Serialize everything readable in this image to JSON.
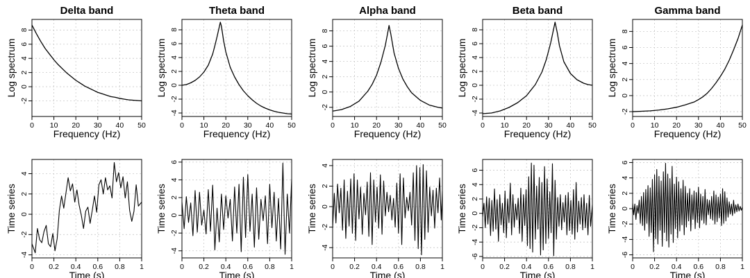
{
  "chart_data": [
    {
      "type": "line",
      "name": "spec-delta",
      "title": "Delta band",
      "xlabel": "Frequency (Hz)",
      "ylabel": "Log spectrum",
      "xlim": [
        0,
        50
      ],
      "ylim": [
        -4.2,
        9.5
      ],
      "xticks": [
        0,
        10,
        20,
        30,
        40,
        50
      ],
      "yticks": [
        -2,
        0,
        2,
        4,
        6,
        8
      ],
      "x": [
        0,
        2,
        4,
        6,
        8,
        10,
        12,
        14,
        16,
        18,
        20,
        22,
        24,
        26,
        28,
        30,
        32,
        34,
        36,
        38,
        40,
        42,
        44,
        46,
        48,
        50
      ],
      "y": [
        8.7,
        7.5,
        6.4,
        5.4,
        4.6,
        3.8,
        3.1,
        2.5,
        1.9,
        1.4,
        0.9,
        0.5,
        0.1,
        -0.2,
        -0.5,
        -0.8,
        -1.0,
        -1.2,
        -1.4,
        -1.5,
        -1.65,
        -1.75,
        -1.85,
        -1.9,
        -1.95,
        -2.0
      ]
    },
    {
      "type": "line",
      "name": "spec-theta",
      "title": "Theta band",
      "xlabel": "Frequency (Hz)",
      "ylabel": "Log spectrum",
      "xlim": [
        0,
        50
      ],
      "ylim": [
        -4.5,
        9.5
      ],
      "xticks": [
        0,
        10,
        20,
        30,
        40,
        50
      ],
      "yticks": [
        -4,
        -2,
        0,
        2,
        4,
        6,
        8
      ],
      "x": [
        0,
        2,
        4,
        6,
        8,
        10,
        12,
        14,
        15,
        16,
        17,
        17.5,
        18,
        19,
        20,
        22,
        24,
        26,
        28,
        30,
        32,
        34,
        36,
        38,
        40,
        42,
        44,
        46,
        48,
        50
      ],
      "y": [
        0,
        0.1,
        0.35,
        0.7,
        1.2,
        1.9,
        2.9,
        4.5,
        5.7,
        7.0,
        8.4,
        9.1,
        8.5,
        6.4,
        4.8,
        2.6,
        1.2,
        0.1,
        -0.8,
        -1.5,
        -2.1,
        -2.6,
        -3.0,
        -3.3,
        -3.55,
        -3.75,
        -3.9,
        -4.0,
        -4.1,
        -4.15
      ]
    },
    {
      "type": "line",
      "name": "spec-alpha",
      "title": "Alpha band",
      "xlabel": "Frequency (Hz)",
      "ylabel": "Log spectrum",
      "xlim": [
        0,
        50
      ],
      "ylim": [
        -3.2,
        9.5
      ],
      "xticks": [
        0,
        10,
        20,
        30,
        40,
        50
      ],
      "yticks": [
        -2,
        0,
        2,
        4,
        6,
        8
      ],
      "x": [
        0,
        4,
        8,
        12,
        16,
        18,
        20,
        22,
        24,
        25,
        25.7,
        26.5,
        28,
        30,
        32,
        34,
        36,
        40,
        44,
        48,
        50
      ],
      "y": [
        -2.5,
        -2.3,
        -1.9,
        -1.2,
        0.1,
        1.0,
        2.2,
        3.9,
        6.1,
        7.6,
        8.7,
        7.6,
        5.1,
        3.1,
        1.7,
        0.7,
        -0.1,
        -1.1,
        -1.7,
        -2.0,
        -2.1
      ]
    },
    {
      "type": "line",
      "name": "spec-beta",
      "title": "Beta band",
      "xlabel": "Frequency (Hz)",
      "ylabel": "Log spectrum",
      "xlim": [
        0,
        50
      ],
      "ylim": [
        -4.5,
        9.5
      ],
      "xticks": [
        0,
        10,
        20,
        30,
        40,
        50
      ],
      "yticks": [
        -4,
        -2,
        0,
        2,
        4,
        6,
        8
      ],
      "x": [
        0,
        4,
        8,
        12,
        16,
        20,
        24,
        27,
        29,
        31,
        32,
        33,
        34,
        35,
        37,
        40,
        43,
        46,
        48,
        50
      ],
      "y": [
        -4.1,
        -4.0,
        -3.7,
        -3.2,
        -2.5,
        -1.5,
        0.1,
        1.9,
        3.7,
        6.1,
        7.6,
        9.1,
        7.6,
        5.7,
        3.4,
        1.7,
        0.8,
        0.3,
        0.1,
        0.0
      ]
    },
    {
      "type": "line",
      "name": "spec-gamma",
      "title": "Gamma band",
      "xlabel": "Frequency (Hz)",
      "ylabel": "Log spectrum",
      "xlim": [
        0,
        50
      ],
      "ylim": [
        -2.6,
        9.5
      ],
      "xticks": [
        0,
        10,
        20,
        30,
        40,
        50
      ],
      "yticks": [
        -2,
        0,
        2,
        4,
        6,
        8
      ],
      "x": [
        0,
        4,
        8,
        12,
        16,
        20,
        24,
        28,
        30,
        32,
        34,
        36,
        38,
        40,
        42,
        44,
        46,
        48,
        50
      ],
      "y": [
        -2.0,
        -1.95,
        -1.9,
        -1.8,
        -1.65,
        -1.45,
        -1.15,
        -0.8,
        -0.5,
        -0.15,
        0.3,
        0.9,
        1.6,
        2.4,
        3.3,
        4.4,
        5.7,
        7.1,
        8.8
      ]
    },
    {
      "type": "line",
      "name": "ts-delta",
      "title": "",
      "xlabel": "Time (s)",
      "ylabel": "Time series",
      "xlim": [
        0,
        1
      ],
      "ylim": [
        -4.3,
        5.4
      ],
      "xticks": [
        0,
        0.2,
        0.4,
        0.6,
        0.8,
        1.0
      ],
      "yticks": [
        -4,
        -2,
        0,
        2,
        4
      ],
      "x": [
        0.0,
        0.03,
        0.05,
        0.07,
        0.09,
        0.11,
        0.13,
        0.15,
        0.17,
        0.19,
        0.21,
        0.23,
        0.25,
        0.27,
        0.29,
        0.31,
        0.33,
        0.35,
        0.37,
        0.39,
        0.41,
        0.43,
        0.45,
        0.47,
        0.49,
        0.51,
        0.53,
        0.55,
        0.57,
        0.59,
        0.61,
        0.63,
        0.65,
        0.67,
        0.69,
        0.71,
        0.73,
        0.75,
        0.77,
        0.79,
        0.81,
        0.83,
        0.85,
        0.87,
        0.89,
        0.91,
        0.93,
        0.95,
        0.97,
        1.0
      ],
      "y": [
        -2.9,
        -3.8,
        -1.4,
        -2.5,
        -2.8,
        -1.7,
        -1.1,
        -2.9,
        -3.2,
        -1.9,
        -3.6,
        -2.4,
        0.4,
        1.8,
        0.6,
        2.1,
        3.6,
        2.3,
        3.0,
        1.2,
        2.4,
        0.9,
        -0.1,
        -1.4,
        0.3,
        0.7,
        -0.9,
        0.4,
        1.8,
        0.2,
        2.9,
        3.4,
        2.0,
        3.6,
        2.4,
        2.8,
        1.6,
        5.1,
        3.2,
        4.1,
        2.6,
        3.7,
        1.6,
        3.2,
        0.4,
        -0.7,
        0.3,
        2.9,
        0.8,
        1.2
      ]
    },
    {
      "type": "line",
      "name": "ts-theta",
      "title": "",
      "xlabel": "Time (s)",
      "ylabel": "Time series",
      "xlim": [
        0,
        1
      ],
      "ylim": [
        -4.8,
        6.3
      ],
      "xticks": [
        0,
        0.2,
        0.4,
        0.6,
        0.8,
        1.0
      ],
      "yticks": [
        -4,
        -2,
        0,
        2,
        4,
        6
      ],
      "x": [
        0.0,
        0.02,
        0.04,
        0.06,
        0.08,
        0.1,
        0.12,
        0.14,
        0.16,
        0.18,
        0.2,
        0.22,
        0.24,
        0.26,
        0.28,
        0.3,
        0.32,
        0.34,
        0.36,
        0.38,
        0.4,
        0.42,
        0.44,
        0.46,
        0.48,
        0.5,
        0.52,
        0.54,
        0.56,
        0.58,
        0.6,
        0.62,
        0.64,
        0.66,
        0.68,
        0.7,
        0.72,
        0.74,
        0.76,
        0.78,
        0.8,
        0.82,
        0.84,
        0.86,
        0.88,
        0.9,
        0.92,
        0.94,
        0.96,
        0.98,
        1.0
      ],
      "y": [
        1.5,
        -1.5,
        2.1,
        -0.8,
        1.4,
        -2.3,
        2.8,
        -1.9,
        2.6,
        -1.1,
        0.6,
        -2.1,
        2.9,
        -1.8,
        3.4,
        -3.9,
        0.8,
        -3.0,
        2.4,
        -1.6,
        2.2,
        -0.3,
        1.8,
        -2.9,
        3.2,
        -2.0,
        3.5,
        -4.1,
        4.3,
        -2.5,
        4.6,
        -1.8,
        2.4,
        -3.6,
        3.1,
        -2.7,
        1.8,
        -0.6,
        2.2,
        -3.2,
        3.5,
        -1.4,
        2.6,
        -2.9,
        1.9,
        -3.8,
        5.9,
        -4.4,
        2.4,
        -2.0,
        4.1
      ]
    },
    {
      "type": "line",
      "name": "ts-alpha",
      "title": "",
      "xlabel": "Time (s)",
      "ylabel": "Time series",
      "xlim": [
        0,
        1
      ],
      "ylim": [
        -5.0,
        4.6
      ],
      "xticks": [
        0,
        0.2,
        0.4,
        0.6,
        0.8,
        1.0
      ],
      "yticks": [
        -4,
        -2,
        0,
        2,
        4
      ],
      "x": [
        0.0,
        0.015,
        0.03,
        0.045,
        0.06,
        0.075,
        0.09,
        0.105,
        0.12,
        0.135,
        0.15,
        0.165,
        0.18,
        0.195,
        0.21,
        0.225,
        0.24,
        0.255,
        0.27,
        0.285,
        0.3,
        0.315,
        0.33,
        0.345,
        0.36,
        0.375,
        0.39,
        0.405,
        0.42,
        0.435,
        0.45,
        0.465,
        0.48,
        0.495,
        0.51,
        0.525,
        0.54,
        0.555,
        0.57,
        0.585,
        0.6,
        0.615,
        0.63,
        0.645,
        0.66,
        0.675,
        0.69,
        0.705,
        0.72,
        0.735,
        0.75,
        0.765,
        0.78,
        0.795,
        0.81,
        0.825,
        0.84,
        0.855,
        0.87,
        0.885,
        0.9,
        0.915,
        0.93,
        0.945,
        0.96,
        0.975,
        0.99,
        1.0
      ],
      "y": [
        -2.1,
        1.3,
        -1.6,
        2.2,
        -0.6,
        1.8,
        -2.3,
        2.6,
        -3.1,
        1.5,
        -1.9,
        2.7,
        -2.6,
        3.2,
        -3.3,
        2.6,
        -1.2,
        1.9,
        -2.7,
        1.3,
        -0.8,
        2.4,
        -2.9,
        3.3,
        -3.7,
        2.6,
        -1.5,
        1.9,
        -2.1,
        3.1,
        -2.7,
        2.5,
        -0.9,
        1.4,
        -0.5,
        1.1,
        -1.3,
        0.8,
        -2.0,
        2.3,
        -2.6,
        3.2,
        -3.7,
        2.8,
        -1.1,
        0.9,
        -0.4,
        1.4,
        -1.8,
        3.3,
        -3.3,
        4.0,
        -4.1,
        3.8,
        -4.7,
        4.1,
        -3.2,
        3.5,
        -2.5,
        1.9,
        -0.9,
        1.6,
        -2.1,
        1.8,
        -0.6,
        2.8,
        -1.3,
        1.5
      ]
    },
    {
      "type": "line",
      "name": "ts-beta",
      "title": "",
      "xlabel": "Time (s)",
      "ylabel": "Time series",
      "xlim": [
        0,
        1
      ],
      "ylim": [
        -6.2,
        7.5
      ],
      "xticks": [
        0,
        0.2,
        0.4,
        0.6,
        0.8,
        1.0
      ],
      "yticks": [
        -6,
        -4,
        -2,
        0,
        2,
        4,
        6
      ],
      "x": [
        0.0,
        0.012,
        0.024,
        0.036,
        0.048,
        0.06,
        0.072,
        0.084,
        0.096,
        0.108,
        0.12,
        0.132,
        0.144,
        0.156,
        0.168,
        0.18,
        0.192,
        0.204,
        0.216,
        0.228,
        0.24,
        0.252,
        0.264,
        0.276,
        0.288,
        0.3,
        0.312,
        0.324,
        0.336,
        0.348,
        0.36,
        0.372,
        0.384,
        0.396,
        0.408,
        0.42,
        0.432,
        0.444,
        0.456,
        0.468,
        0.48,
        0.492,
        0.504,
        0.516,
        0.528,
        0.54,
        0.552,
        0.564,
        0.576,
        0.588,
        0.6,
        0.612,
        0.624,
        0.636,
        0.648,
        0.66,
        0.672,
        0.684,
        0.696,
        0.708,
        0.72,
        0.732,
        0.744,
        0.756,
        0.768,
        0.78,
        0.792,
        0.804,
        0.816,
        0.828,
        0.84,
        0.852,
        0.864,
        0.876,
        0.888,
        0.9,
        0.912,
        0.924,
        0.936,
        0.948,
        0.96,
        0.972,
        0.984,
        1.0
      ],
      "y": [
        -0.5,
        1.4,
        -2.0,
        2.3,
        -1.5,
        2.1,
        -3.1,
        1.8,
        -2.5,
        3.4,
        -2.2,
        1.9,
        -3.9,
        2.6,
        -1.6,
        1.4,
        -2.7,
        3.1,
        -3.4,
        2.0,
        -1.3,
        4.2,
        -3.0,
        2.6,
        -1.9,
        1.3,
        -0.9,
        2.1,
        -2.8,
        3.5,
        -3.9,
        2.6,
        -1.7,
        3.3,
        -4.5,
        5.1,
        -4.9,
        7.0,
        -5.4,
        6.7,
        -3.6,
        3.8,
        -2.2,
        5.0,
        -5.8,
        4.3,
        -5.1,
        6.5,
        -4.2,
        4.8,
        -3.5,
        3.0,
        -2.7,
        6.9,
        -5.9,
        4.6,
        -3.6,
        2.2,
        -1.8,
        2.6,
        -2.3,
        1.5,
        -1.2,
        2.5,
        -3.0,
        2.9,
        -2.4,
        1.8,
        -2.9,
        3.3,
        -3.6,
        4.3,
        -2.6,
        1.7,
        -1.5,
        2.2,
        -2.3,
        2.6,
        -2.0,
        1.4,
        -3.0,
        2.5,
        -1.8,
        1.2
      ]
    },
    {
      "type": "line",
      "name": "ts-gamma",
      "title": "",
      "xlabel": "Time (s)",
      "ylabel": "Time series",
      "xlim": [
        0,
        1
      ],
      "ylim": [
        -6.4,
        6.4
      ],
      "xticks": [
        0,
        0.2,
        0.4,
        0.6,
        0.8,
        1.0
      ],
      "yticks": [
        -6,
        -4,
        -2,
        0,
        2,
        4,
        6
      ],
      "x": [
        0.0,
        0.01,
        0.02,
        0.03,
        0.04,
        0.05,
        0.06,
        0.07,
        0.08,
        0.09,
        0.1,
        0.11,
        0.12,
        0.13,
        0.14,
        0.15,
        0.16,
        0.17,
        0.18,
        0.19,
        0.2,
        0.21,
        0.22,
        0.23,
        0.24,
        0.25,
        0.26,
        0.27,
        0.28,
        0.29,
        0.3,
        0.31,
        0.32,
        0.33,
        0.34,
        0.35,
        0.36,
        0.37,
        0.38,
        0.39,
        0.4,
        0.41,
        0.42,
        0.43,
        0.44,
        0.45,
        0.46,
        0.47,
        0.48,
        0.49,
        0.5,
        0.51,
        0.52,
        0.53,
        0.54,
        0.55,
        0.56,
        0.57,
        0.58,
        0.59,
        0.6,
        0.61,
        0.62,
        0.63,
        0.64,
        0.65,
        0.66,
        0.67,
        0.68,
        0.69,
        0.7,
        0.71,
        0.72,
        0.73,
        0.74,
        0.75,
        0.76,
        0.77,
        0.78,
        0.79,
        0.8,
        0.81,
        0.82,
        0.83,
        0.84,
        0.85,
        0.86,
        0.87,
        0.88,
        0.89,
        0.9,
        0.91,
        0.92,
        0.93,
        0.94,
        0.95,
        0.96,
        0.97,
        0.98,
        0.99,
        1.0
      ],
      "y": [
        0.7,
        -0.8,
        0.6,
        -1.4,
        0.4,
        -0.6,
        1.1,
        -1.9,
        1.6,
        -2.2,
        2.1,
        -2.8,
        2.5,
        -1.9,
        3.0,
        -3.6,
        2.7,
        -3.1,
        3.8,
        -5.6,
        4.4,
        -3.9,
        5.1,
        -4.6,
        4.2,
        -2.8,
        3.6,
        -4.9,
        4.8,
        -3.1,
        5.9,
        -4.2,
        4.5,
        -5.0,
        3.9,
        -3.3,
        5.5,
        -4.4,
        3.2,
        -2.6,
        4.1,
        -3.8,
        3.5,
        -2.9,
        2.6,
        -2.1,
        3.7,
        -3.4,
        2.9,
        -2.4,
        2.0,
        -1.6,
        2.6,
        -2.9,
        1.8,
        -1.4,
        2.3,
        -2.6,
        2.1,
        -1.8,
        2.8,
        -2.5,
        1.9,
        -1.5,
        1.6,
        -1.9,
        2.5,
        -2.1,
        1.2,
        -0.8,
        1.1,
        -1.3,
        1.6,
        -1.5,
        2.3,
        -2.0,
        1.8,
        -1.7,
        1.5,
        -1.2,
        1.9,
        -2.2,
        2.6,
        -1.9,
        2.2,
        -1.6,
        1.4,
        -1.1,
        0.9,
        -0.7,
        0.6,
        -0.9,
        1.1,
        -0.6,
        0.5,
        -0.4,
        0.6,
        -0.3,
        0.3,
        -0.2,
        0.2
      ]
    }
  ]
}
